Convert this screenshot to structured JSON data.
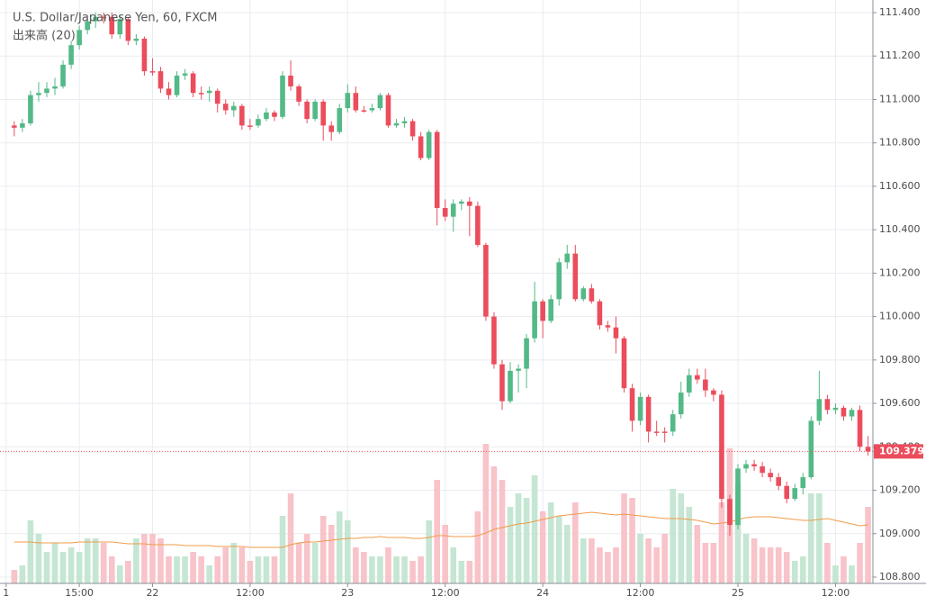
{
  "chart_data": {
    "type": "candlestick",
    "title": "U.S. Dollar/Japanese Yen, 60, FXCM",
    "subtitle": "出来高 (20)",
    "open": [
      110.88,
      110.87,
      110.89,
      111.02,
      111.03,
      111.05,
      111.06,
      111.16,
      111.25,
      111.32,
      111.36,
      111.38,
      111.38,
      111.3,
      111.37,
      111.27,
      111.28,
      111.13,
      111.13,
      111.05,
      111.02,
      111.11,
      111.12,
      111.03,
      111.03,
      111.04,
      110.98,
      110.95,
      110.97,
      110.88,
      110.88,
      110.91,
      110.94,
      110.92,
      111.11,
      111.06,
      110.99,
      110.91,
      110.99,
      110.88,
      110.85,
      110.96,
      111.03,
      110.95,
      110.95,
      110.96,
      111.02,
      110.88,
      110.89,
      110.9,
      110.83,
      110.73,
      110.85,
      110.5,
      110.46,
      110.52,
      110.53,
      110.51,
      110.33,
      110.0,
      109.78,
      109.61,
      109.75,
      109.76,
      109.9,
      110.07,
      109.98,
      110.08,
      110.25,
      110.29,
      110.08,
      110.13,
      110.07,
      109.96,
      109.95,
      109.9,
      109.67,
      109.52,
      109.63,
      109.47,
      109.47,
      109.47,
      109.55,
      109.65,
      109.73,
      109.71,
      109.66,
      109.64,
      109.16,
      109.04,
      109.3,
      109.32,
      109.31,
      109.28,
      109.26,
      109.22,
      109.16,
      109.21,
      109.26,
      109.52,
      109.62,
      109.57,
      109.58,
      109.54,
      109.57,
      109.4
    ],
    "high": [
      110.9,
      110.91,
      111.04,
      111.08,
      111.08,
      111.1,
      111.18,
      111.27,
      111.34,
      111.39,
      111.4,
      111.4,
      111.4,
      111.39,
      111.38,
      111.3,
      111.29,
      111.19,
      111.15,
      111.08,
      111.13,
      111.14,
      111.13,
      111.06,
      111.06,
      111.05,
      111.0,
      110.99,
      110.98,
      110.91,
      110.93,
      110.96,
      110.95,
      111.13,
      111.18,
      111.07,
      111.0,
      111.0,
      111.0,
      110.9,
      110.98,
      111.07,
      111.06,
      110.97,
      110.98,
      111.03,
      111.03,
      110.91,
      110.92,
      110.91,
      110.85,
      110.86,
      110.86,
      110.54,
      110.54,
      110.54,
      110.55,
      110.53,
      110.34,
      110.02,
      109.8,
      109.79,
      109.78,
      109.92,
      110.16,
      110.08,
      110.1,
      110.27,
      110.33,
      110.33,
      110.14,
      110.15,
      110.08,
      109.98,
      110.0,
      109.91,
      109.69,
      109.65,
      109.64,
      109.52,
      109.49,
      109.57,
      109.7,
      109.76,
      109.76,
      109.76,
      109.67,
      109.66,
      109.18,
      109.32,
      109.34,
      109.34,
      109.33,
      109.3,
      109.28,
      109.24,
      109.23,
      109.28,
      109.54,
      109.75,
      109.64,
      109.6,
      109.59,
      109.58,
      109.59,
      109.45
    ],
    "low": [
      110.83,
      110.85,
      110.88,
      110.99,
      111.01,
      111.02,
      111.05,
      111.14,
      111.23,
      111.3,
      111.33,
      111.35,
      111.28,
      111.28,
      111.25,
      111.25,
      111.11,
      111.11,
      111.03,
      111.0,
      111.01,
      111.09,
      111.01,
      111.0,
      110.99,
      110.94,
      110.93,
      110.92,
      110.86,
      110.86,
      110.87,
      110.9,
      110.9,
      110.91,
      111.04,
      110.97,
      110.89,
      110.9,
      110.81,
      110.81,
      110.84,
      110.94,
      110.94,
      110.94,
      110.94,
      110.95,
      110.87,
      110.87,
      110.87,
      110.81,
      110.72,
      110.72,
      110.42,
      110.44,
      110.39,
      110.49,
      110.37,
      110.32,
      109.98,
      109.76,
      109.57,
      109.6,
      109.65,
      109.67,
      109.88,
      109.9,
      109.97,
      110.05,
      110.22,
      110.07,
      110.07,
      110.06,
      109.94,
      109.93,
      109.83,
      109.65,
      109.47,
      109.5,
      109.42,
      109.45,
      109.42,
      109.45,
      109.53,
      109.63,
      109.69,
      109.63,
      109.61,
      109.12,
      108.99,
      109.02,
      109.28,
      109.29,
      109.26,
      109.24,
      109.2,
      109.14,
      109.15,
      109.18,
      109.25,
      109.5,
      109.55,
      109.55,
      109.52,
      109.52,
      109.38,
      109.36
    ],
    "close": [
      110.87,
      110.89,
      111.02,
      111.03,
      111.05,
      111.06,
      111.16,
      111.25,
      111.32,
      111.36,
      111.38,
      111.38,
      111.3,
      111.37,
      111.27,
      111.28,
      111.13,
      111.13,
      111.05,
      111.02,
      111.11,
      111.12,
      111.03,
      111.03,
      111.04,
      110.98,
      110.95,
      110.97,
      110.88,
      110.88,
      110.91,
      110.94,
      110.92,
      111.11,
      111.06,
      110.99,
      110.91,
      110.99,
      110.88,
      110.85,
      110.96,
      111.03,
      110.95,
      110.95,
      110.96,
      111.02,
      110.88,
      110.89,
      110.9,
      110.83,
      110.73,
      110.85,
      110.5,
      110.46,
      110.52,
      110.53,
      110.51,
      110.33,
      110.0,
      109.78,
      109.61,
      109.75,
      109.76,
      109.9,
      110.07,
      109.98,
      110.08,
      110.25,
      110.29,
      110.08,
      110.13,
      110.07,
      109.96,
      109.95,
      109.9,
      109.67,
      109.52,
      109.63,
      109.47,
      109.47,
      109.47,
      109.55,
      109.65,
      109.73,
      109.71,
      109.66,
      109.64,
      109.16,
      109.04,
      109.3,
      109.32,
      109.31,
      109.28,
      109.26,
      109.22,
      109.16,
      109.21,
      109.26,
      109.52,
      109.62,
      109.57,
      109.58,
      109.54,
      109.57,
      109.4,
      109.379
    ],
    "volume": [
      15,
      20,
      70,
      55,
      35,
      45,
      35,
      40,
      35,
      50,
      50,
      45,
      30,
      20,
      25,
      50,
      55,
      55,
      50,
      30,
      30,
      30,
      35,
      30,
      20,
      30,
      40,
      45,
      40,
      25,
      30,
      30,
      30,
      75,
      100,
      45,
      55,
      45,
      75,
      65,
      80,
      70,
      40,
      35,
      30,
      30,
      40,
      30,
      30,
      25,
      30,
      70,
      115,
      65,
      40,
      25,
      25,
      80,
      155,
      130,
      115,
      85,
      100,
      95,
      120,
      80,
      90,
      75,
      65,
      90,
      50,
      50,
      40,
      35,
      40,
      100,
      95,
      55,
      50,
      40,
      55,
      105,
      100,
      85,
      65,
      45,
      45,
      90,
      150,
      110,
      55,
      50,
      40,
      40,
      40,
      35,
      25,
      30,
      100,
      100,
      45,
      20,
      30,
      20,
      45,
      85
    ],
    "volume_ma": [
      46,
      46,
      46,
      45,
      45,
      45,
      45,
      45,
      46,
      46,
      46,
      46,
      46,
      45,
      44,
      44,
      44,
      43,
      43,
      43,
      43,
      42,
      42,
      42,
      42,
      41,
      41,
      41,
      41,
      40,
      40,
      40,
      40,
      40,
      43,
      45,
      46,
      46,
      47,
      48,
      49,
      50,
      50,
      51,
      51,
      52,
      51,
      51,
      51,
      50,
      50,
      51,
      53,
      53,
      52,
      52,
      52,
      53,
      56,
      60,
      62,
      64,
      66,
      67,
      69,
      71,
      73,
      75,
      76,
      77,
      78,
      79,
      78,
      77,
      76,
      77,
      76,
      75,
      74,
      73,
      72,
      72,
      72,
      71,
      70,
      68,
      66,
      67,
      68,
      71,
      73,
      74,
      74,
      74,
      73,
      72,
      71,
      70,
      70,
      71,
      72,
      70,
      68,
      66,
      64,
      65
    ],
    "up_color": "#53b987",
    "down_color": "#eb4d5c",
    "volume_up_color": "#c5e6d3",
    "volume_down_color": "#f8c3c9",
    "volume_ma_color": "#f29b4a",
    "ylim": [
      108.8,
      111.4
    ],
    "yticks": [
      {
        "value": 108.8,
        "label": "108.800"
      },
      {
        "value": 109.0,
        "label": "109.000"
      },
      {
        "value": 109.2,
        "label": "109.200"
      },
      {
        "value": 109.4,
        "label": "109.400"
      },
      {
        "value": 109.6,
        "label": "109.600"
      },
      {
        "value": 109.8,
        "label": "109.800"
      },
      {
        "value": 110.0,
        "label": "110.000"
      },
      {
        "value": 110.2,
        "label": "110.200"
      },
      {
        "value": 110.4,
        "label": "110.400"
      },
      {
        "value": 110.6,
        "label": "110.600"
      },
      {
        "value": 110.8,
        "label": "110.800"
      },
      {
        "value": 111.0,
        "label": "111.000"
      },
      {
        "value": 111.2,
        "label": "111.200"
      },
      {
        "value": 111.4,
        "label": "111.400"
      }
    ],
    "xlim": [
      -1.2,
      105.6
    ],
    "xticks": [
      {
        "value": -1,
        "label": "1"
      },
      {
        "value": 8,
        "label": "15:00"
      },
      {
        "value": 17,
        "label": "22"
      },
      {
        "value": 29,
        "label": "12:00"
      },
      {
        "value": 41,
        "label": "23"
      },
      {
        "value": 53,
        "label": "12:00"
      },
      {
        "value": 65,
        "label": "24"
      },
      {
        "value": 77,
        "label": "12:00"
      },
      {
        "value": 89,
        "label": "25"
      },
      {
        "value": 101,
        "label": "12:00"
      }
    ],
    "vlim": [
      0,
      160
    ],
    "grid": true,
    "last_value_label": "109.379"
  }
}
